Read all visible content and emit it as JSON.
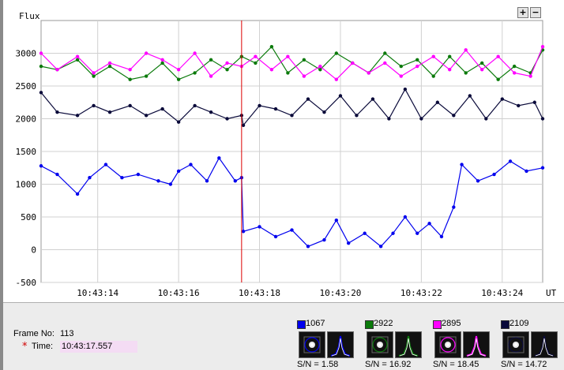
{
  "zoom": {
    "plus": "+",
    "minus": "−"
  },
  "colors": {
    "star1": "#0000ee",
    "star2": "#0a7a0a",
    "star3": "#ff00ff",
    "star4": "#0a0a3a",
    "cursor": "#dd0000",
    "time_bg": "#f4dcf4"
  },
  "info": {
    "frame_label": "Frame No:",
    "frame_value": "113",
    "time_label": "Time:",
    "time_value": "10:43:17.557"
  },
  "stars": [
    {
      "id": "1067",
      "color": "#0000ee",
      "sn_label": "S/N =",
      "sn_value": "1.58"
    },
    {
      "id": "2922",
      "color": "#0a7a0a",
      "sn_label": "S/N =",
      "sn_value": "16.92"
    },
    {
      "id": "2895",
      "color": "#ff00ff",
      "sn_label": "S/N =",
      "sn_value": "18.45"
    },
    {
      "id": "2109",
      "color": "#0a0a3a",
      "sn_label": "S/N =",
      "sn_value": "14.72"
    }
  ],
  "chart_data": {
    "type": "line",
    "ylabel": "Flux",
    "xlabel": "UT",
    "ylim": [
      -500,
      3500
    ],
    "y_ticks": [
      "3000",
      "2500",
      "2000",
      "1500",
      "1000",
      "500",
      "0",
      "-500"
    ],
    "x_ticks": [
      "10:43:14",
      "10:43:16",
      "10:43:18",
      "10:43:20",
      "10:43:22",
      "10:43:24"
    ],
    "x_range_seconds": [
      12.6,
      25.0
    ],
    "cursor_time": "10:43:17.557",
    "cursor_seconds": 17.557,
    "grid": true,
    "series": [
      {
        "name": "1067",
        "color": "#0000ee",
        "points": [
          [
            12.6,
            1280
          ],
          [
            13.0,
            1150
          ],
          [
            13.5,
            850
          ],
          [
            13.8,
            1100
          ],
          [
            14.2,
            1300
          ],
          [
            14.6,
            1100
          ],
          [
            15.0,
            1150
          ],
          [
            15.5,
            1050
          ],
          [
            15.8,
            1000
          ],
          [
            16.0,
            1200
          ],
          [
            16.3,
            1300
          ],
          [
            16.7,
            1050
          ],
          [
            17.0,
            1400
          ],
          [
            17.4,
            1050
          ],
          [
            17.557,
            1100
          ],
          [
            17.6,
            280
          ],
          [
            18.0,
            350
          ],
          [
            18.4,
            200
          ],
          [
            18.8,
            300
          ],
          [
            19.2,
            50
          ],
          [
            19.6,
            150
          ],
          [
            19.9,
            450
          ],
          [
            20.2,
            100
          ],
          [
            20.6,
            250
          ],
          [
            21.0,
            50
          ],
          [
            21.3,
            250
          ],
          [
            21.6,
            500
          ],
          [
            21.9,
            250
          ],
          [
            22.2,
            400
          ],
          [
            22.5,
            200
          ],
          [
            22.8,
            650
          ],
          [
            23.0,
            1300
          ],
          [
            23.4,
            1050
          ],
          [
            23.8,
            1150
          ],
          [
            24.2,
            1350
          ],
          [
            24.6,
            1200
          ],
          [
            25.0,
            1250
          ]
        ]
      },
      {
        "name": "2922",
        "color": "#0a7a0a",
        "points": [
          [
            12.6,
            2800
          ],
          [
            13.0,
            2750
          ],
          [
            13.5,
            2900
          ],
          [
            13.9,
            2650
          ],
          [
            14.3,
            2800
          ],
          [
            14.8,
            2600
          ],
          [
            15.2,
            2650
          ],
          [
            15.6,
            2850
          ],
          [
            16.0,
            2600
          ],
          [
            16.4,
            2700
          ],
          [
            16.8,
            2900
          ],
          [
            17.2,
            2750
          ],
          [
            17.557,
            2950
          ],
          [
            17.9,
            2850
          ],
          [
            18.3,
            3100
          ],
          [
            18.7,
            2700
          ],
          [
            19.1,
            2900
          ],
          [
            19.5,
            2750
          ],
          [
            19.9,
            3000
          ],
          [
            20.3,
            2850
          ],
          [
            20.7,
            2700
          ],
          [
            21.1,
            3000
          ],
          [
            21.5,
            2800
          ],
          [
            21.9,
            2900
          ],
          [
            22.3,
            2650
          ],
          [
            22.7,
            2950
          ],
          [
            23.1,
            2700
          ],
          [
            23.5,
            2850
          ],
          [
            23.9,
            2600
          ],
          [
            24.3,
            2800
          ],
          [
            24.7,
            2700
          ],
          [
            25.0,
            3050
          ]
        ]
      },
      {
        "name": "2895",
        "color": "#ff00ff",
        "points": [
          [
            12.6,
            3000
          ],
          [
            13.0,
            2750
          ],
          [
            13.5,
            2950
          ],
          [
            13.9,
            2700
          ],
          [
            14.3,
            2850
          ],
          [
            14.8,
            2750
          ],
          [
            15.2,
            3000
          ],
          [
            15.6,
            2900
          ],
          [
            16.0,
            2750
          ],
          [
            16.4,
            3000
          ],
          [
            16.8,
            2650
          ],
          [
            17.2,
            2850
          ],
          [
            17.557,
            2800
          ],
          [
            17.9,
            2950
          ],
          [
            18.3,
            2750
          ],
          [
            18.7,
            2950
          ],
          [
            19.1,
            2650
          ],
          [
            19.5,
            2800
          ],
          [
            19.9,
            2600
          ],
          [
            20.3,
            2850
          ],
          [
            20.7,
            2700
          ],
          [
            21.1,
            2850
          ],
          [
            21.5,
            2650
          ],
          [
            21.9,
            2800
          ],
          [
            22.3,
            2950
          ],
          [
            22.7,
            2750
          ],
          [
            23.1,
            3050
          ],
          [
            23.5,
            2750
          ],
          [
            23.9,
            2950
          ],
          [
            24.3,
            2700
          ],
          [
            24.7,
            2650
          ],
          [
            25.0,
            3100
          ]
        ]
      },
      {
        "name": "2109",
        "color": "#0a0a3a",
        "points": [
          [
            12.6,
            2400
          ],
          [
            13.0,
            2100
          ],
          [
            13.5,
            2050
          ],
          [
            13.9,
            2200
          ],
          [
            14.3,
            2100
          ],
          [
            14.8,
            2200
          ],
          [
            15.2,
            2050
          ],
          [
            15.6,
            2150
          ],
          [
            16.0,
            1950
          ],
          [
            16.4,
            2200
          ],
          [
            16.8,
            2100
          ],
          [
            17.2,
            2000
          ],
          [
            17.557,
            2050
          ],
          [
            17.6,
            1900
          ],
          [
            18.0,
            2200
          ],
          [
            18.4,
            2150
          ],
          [
            18.8,
            2050
          ],
          [
            19.2,
            2300
          ],
          [
            19.6,
            2100
          ],
          [
            20.0,
            2350
          ],
          [
            20.4,
            2050
          ],
          [
            20.8,
            2300
          ],
          [
            21.2,
            2000
          ],
          [
            21.6,
            2450
          ],
          [
            22.0,
            2000
          ],
          [
            22.4,
            2250
          ],
          [
            22.8,
            2050
          ],
          [
            23.2,
            2350
          ],
          [
            23.6,
            2000
          ],
          [
            24.0,
            2300
          ],
          [
            24.4,
            2200
          ],
          [
            24.8,
            2250
          ],
          [
            25.0,
            2000
          ]
        ]
      }
    ]
  }
}
